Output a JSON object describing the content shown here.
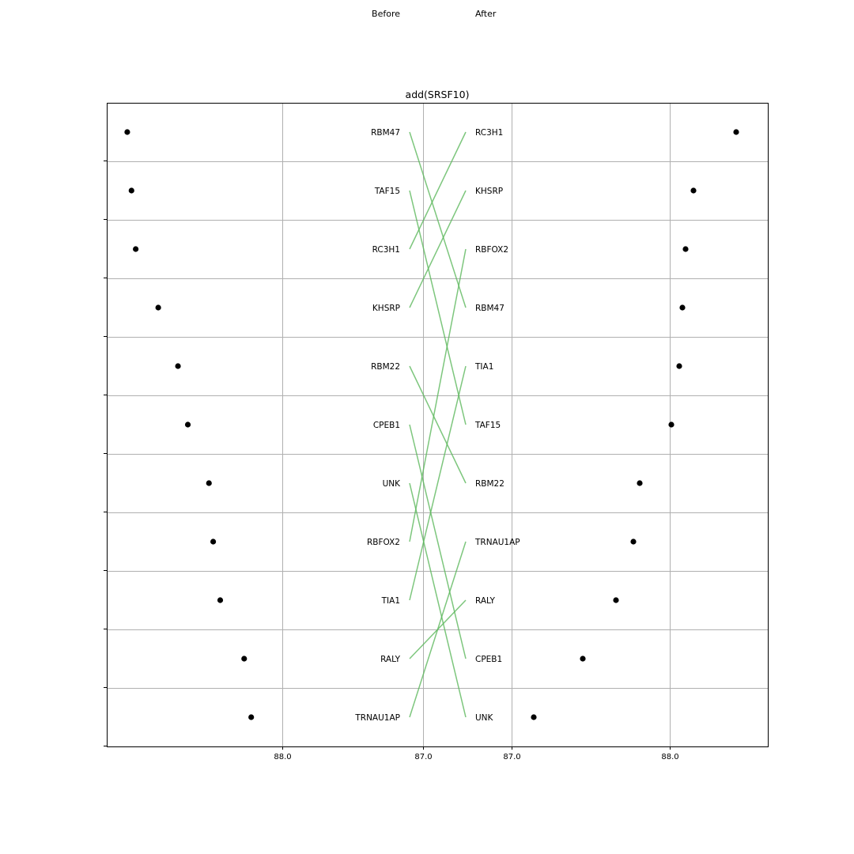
{
  "chart_data": {
    "type": "scatter",
    "title": "add(SRSF10)",
    "header_before": "Before",
    "header_after": "After",
    "grid": true,
    "before": {
      "labels": [
        "RBM47",
        "TAF15",
        "RC3H1",
        "KHSRP",
        "RBM22",
        "CPEB1",
        "UNK",
        "RBFOX2",
        "TIA1",
        "RALY",
        "TRNAU1AP"
      ],
      "values": [
        89.1,
        89.07,
        89.04,
        88.88,
        88.74,
        88.67,
        88.52,
        88.49,
        88.44,
        88.27,
        88.22
      ],
      "xlim": [
        89.24,
        87.0
      ],
      "xticks": [
        88.0,
        87.0
      ],
      "xticklabels": [
        "88.0",
        "87.0"
      ]
    },
    "after": {
      "labels": [
        "RC3H1",
        "KHSRP",
        "RBFOX2",
        "RBM47",
        "TIA1",
        "TAF15",
        "RBM22",
        "TRNAU1AP",
        "RALY",
        "CPEB1",
        "UNK"
      ],
      "values": [
        88.42,
        88.15,
        88.1,
        88.08,
        88.06,
        88.01,
        87.81,
        87.77,
        87.66,
        87.45,
        87.14
      ],
      "xlim": [
        86.72,
        88.62
      ],
      "xticks": [
        87.0,
        88.0
      ],
      "xticklabels": [
        "87.0",
        "88.0"
      ]
    },
    "connector_color": "#5cb85c",
    "point_color": "#000000"
  }
}
